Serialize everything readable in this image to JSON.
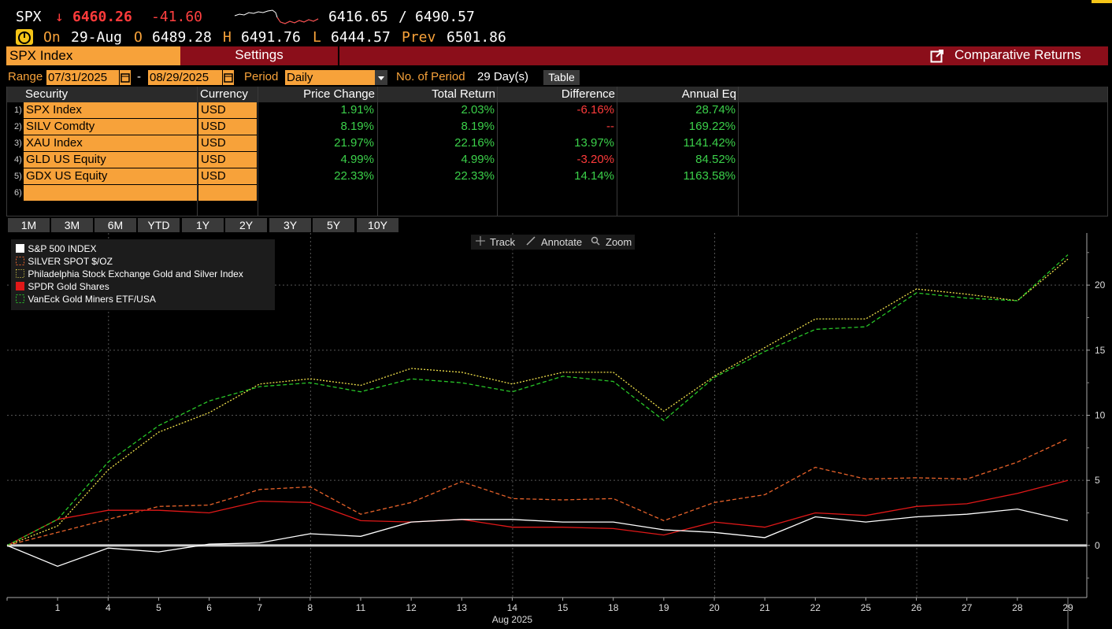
{
  "ticker": {
    "symbol": "SPX",
    "arrow": "↓",
    "last": "6460.26",
    "change": "-41.60",
    "low_high": "6416.65",
    "slash": "/",
    "high": "6490.57",
    "on_label": "On",
    "date": "29-Aug",
    "o_label": "O",
    "open": "6489.28",
    "h_label": "H",
    "hi": "6491.76",
    "l_label": "L",
    "lo": "6444.57",
    "prev_label": "Prev",
    "prev": "6501.86"
  },
  "function_bar": {
    "security": "SPX Index",
    "settings": "Settings",
    "title": "Comparative Returns"
  },
  "range": {
    "range_label": "Range",
    "start": "07/31/2025",
    "dash": "-",
    "end": "08/29/2025",
    "period_label": "Period",
    "period_value": "Daily",
    "no_period_label": "No. of Period",
    "no_period_value": "29 Day(s)",
    "table_button": "Table"
  },
  "table": {
    "headers": [
      "Security",
      "Currency",
      "Price Change",
      "Total Return",
      "Difference",
      "Annual Eq"
    ],
    "rows": [
      {
        "n": "1)",
        "security": "SPX Index",
        "currency": "USD",
        "price_change": "1.91%",
        "total_return": "2.03%",
        "difference": "-6.16%",
        "annual_eq": "28.74%"
      },
      {
        "n": "2)",
        "security": "SILV Comdty",
        "currency": "USD",
        "price_change": "8.19%",
        "total_return": "8.19%",
        "difference": "--",
        "annual_eq": "169.22%"
      },
      {
        "n": "3)",
        "security": "XAU Index",
        "currency": "USD",
        "price_change": "21.97%",
        "total_return": "22.16%",
        "difference": "13.97%",
        "annual_eq": "1141.42%"
      },
      {
        "n": "4)",
        "security": "GLD US Equity",
        "currency": "USD",
        "price_change": "4.99%",
        "total_return": "4.99%",
        "difference": "-3.20%",
        "annual_eq": "84.52%"
      },
      {
        "n": "5)",
        "security": "GDX US Equity",
        "currency": "USD",
        "price_change": "22.33%",
        "total_return": "22.33%",
        "difference": "14.14%",
        "annual_eq": "1163.58%"
      },
      {
        "n": "6)",
        "security": "",
        "currency": "",
        "price_change": "",
        "total_return": "",
        "difference": "",
        "annual_eq": ""
      }
    ]
  },
  "periods": [
    "1M",
    "3M",
    "6M",
    "YTD",
    "1Y",
    "2Y",
    "3Y",
    "5Y",
    "10Y"
  ],
  "chart_tools": {
    "track": "Track",
    "annotate": "Annotate",
    "zoom": "Zoom"
  },
  "colors": {
    "accent_orange": "#f7a23a",
    "bar_red": "#8b0e1a",
    "up_green": "#3bd04a",
    "down_red": "#ff3b3b"
  },
  "chart_data": {
    "type": "line",
    "xlabel": "Aug 2025",
    "x": [
      "31",
      "1",
      "4",
      "5",
      "6",
      "7",
      "8",
      "11",
      "12",
      "13",
      "14",
      "15",
      "18",
      "19",
      "20",
      "21",
      "22",
      "25",
      "26",
      "27",
      "28",
      "29"
    ],
    "x_tick_labels": [
      "1",
      "4",
      "5",
      "6",
      "7",
      "8",
      "11",
      "12",
      "13",
      "14",
      "15",
      "18",
      "19",
      "20",
      "21",
      "22",
      "25",
      "26",
      "27",
      "28",
      "29"
    ],
    "ylim": [
      -4,
      24
    ],
    "y_ticks": [
      "0",
      "5",
      "10",
      "15",
      "20"
    ],
    "y_tick_values": [
      0,
      5,
      10,
      15,
      20
    ],
    "grid": true,
    "legend_position": "top-left",
    "series": [
      {
        "name": "S&P 500 INDEX",
        "color": "#ffffff",
        "style": "solid",
        "values": [
          0,
          -1.6,
          -0.2,
          -0.5,
          0.1,
          0.2,
          0.9,
          0.7,
          1.8,
          2.0,
          2.0,
          1.8,
          1.8,
          1.2,
          1.0,
          0.6,
          2.2,
          1.8,
          2.2,
          2.4,
          2.8,
          1.9
        ]
      },
      {
        "name": "SILVER SPOT $/OZ",
        "color": "#e8622a",
        "style": "dashed",
        "values": [
          0,
          1.0,
          2.0,
          3.0,
          3.1,
          4.3,
          4.5,
          2.4,
          3.3,
          4.9,
          3.6,
          3.5,
          3.6,
          1.9,
          3.3,
          3.9,
          6.0,
          5.1,
          5.2,
          5.1,
          6.4,
          8.2
        ]
      },
      {
        "name": "Philadelphia Stock Exchange Gold and Silver Index",
        "color": "#f1e14a",
        "style": "dotted",
        "values": [
          0,
          1.5,
          5.8,
          8.7,
          10.2,
          12.4,
          12.8,
          12.3,
          13.6,
          13.3,
          12.4,
          13.3,
          13.3,
          10.3,
          13.0,
          15.2,
          17.4,
          17.4,
          19.7,
          19.3,
          18.8,
          22.0
        ]
      },
      {
        "name": "SPDR Gold Shares",
        "color": "#e01818",
        "style": "solid",
        "values": [
          0,
          2.0,
          2.7,
          2.7,
          2.5,
          3.4,
          3.3,
          1.9,
          1.8,
          2.0,
          1.4,
          1.4,
          1.3,
          0.8,
          1.8,
          1.4,
          2.5,
          2.3,
          3.0,
          3.2,
          4.0,
          4.99
        ]
      },
      {
        "name": "VanEck Gold Miners ETF/USA",
        "color": "#28c628",
        "style": "dashed",
        "values": [
          0,
          2.0,
          6.4,
          9.2,
          11.1,
          12.2,
          12.5,
          11.8,
          12.8,
          12.5,
          11.8,
          13.0,
          12.6,
          9.6,
          12.9,
          14.9,
          16.6,
          16.8,
          19.4,
          19.0,
          18.8,
          22.33
        ]
      }
    ]
  }
}
